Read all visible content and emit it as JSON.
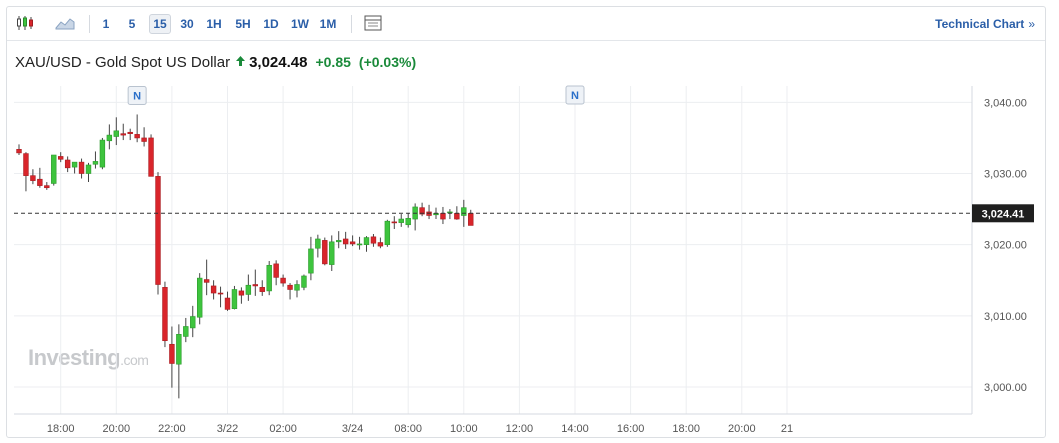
{
  "toolbar": {
    "chart_type_icons": [
      "candlestick-icon",
      "area-chart-icon"
    ],
    "periods": [
      "1",
      "5",
      "15",
      "30",
      "1H",
      "5H",
      "1D",
      "1W",
      "1M"
    ],
    "active_period": "15",
    "indicator_icon": "indicator-panel-icon",
    "technical_chart_label": "Technical Chart",
    "technical_chart_chevron": "»"
  },
  "header": {
    "instrument": "XAU/USD - Gold Spot US Dollar",
    "price": "3,024.48",
    "change": "+0.85",
    "change_pct": "(+0.03%)",
    "trend_icon": "up-arrow-icon",
    "up_color": "#1a8a3a"
  },
  "watermark": {
    "brand": "Investing",
    "suffix": ".com"
  },
  "chart_data": {
    "type": "candlestick",
    "title": "",
    "y_axis": {
      "position": "right",
      "ticks": [
        "3,000.00",
        "3,010.00",
        "3,020.00",
        "3,030.00",
        "3,040.00"
      ],
      "tick_values": [
        3000,
        3010,
        3020,
        3030,
        3040
      ],
      "range": [
        2996.2,
        3042.3
      ]
    },
    "x_axis": {
      "ticks": [
        "18:00",
        "20:00",
        "22:00",
        "3/22",
        "02:00",
        "3/24",
        "08:00",
        "10:00",
        "12:00",
        "14:00",
        "16:00",
        "18:00",
        "20:00",
        "21"
      ],
      "tick_index": [
        6,
        14,
        22,
        30,
        38,
        48,
        56,
        64,
        72,
        80,
        88,
        96,
        104,
        110.5
      ]
    },
    "current_price_label": "3,024.41",
    "current_price": 3024.41,
    "news_markers": [
      {
        "label": "N",
        "index": 17
      },
      {
        "label": "N",
        "index": 80
      }
    ],
    "colors": {
      "up": "#3ec43e",
      "down": "#d9252b",
      "grid": "#eceef1",
      "axis_text": "#555555"
    },
    "grid": true,
    "candles": [
      [
        3033.4,
        3034.1,
        3032.6,
        3032.9
      ],
      [
        3032.8,
        3033.0,
        3027.5,
        3029.7
      ],
      [
        3029.7,
        3030.6,
        3028.5,
        3029.0
      ],
      [
        3029.2,
        3030.8,
        3028.0,
        3028.3
      ],
      [
        3028.3,
        3028.8,
        3027.7,
        3028.0
      ],
      [
        3028.6,
        3032.6,
        3028.3,
        3032.6
      ],
      [
        3032.4,
        3033.0,
        3031.6,
        3032.0
      ],
      [
        3031.9,
        3032.4,
        3030.2,
        3030.8
      ],
      [
        3030.9,
        3031.6,
        3030.0,
        3031.6
      ],
      [
        3031.6,
        3032.1,
        3029.3,
        3030.0
      ],
      [
        3030.0,
        3031.5,
        3028.8,
        3031.2
      ],
      [
        3031.3,
        3033.1,
        3030.7,
        3031.7
      ],
      [
        3030.9,
        3035.0,
        3030.6,
        3034.7
      ],
      [
        3034.6,
        3036.9,
        3033.4,
        3035.4
      ],
      [
        3035.2,
        3037.9,
        3034.0,
        3036.0
      ],
      [
        3035.6,
        3037.0,
        3034.7,
        3035.4
      ],
      [
        3035.8,
        3036.3,
        3034.7,
        3035.6
      ],
      [
        3035.5,
        3038.3,
        3034.4,
        3035.0
      ],
      [
        3035.0,
        3036.5,
        3033.8,
        3034.5
      ],
      [
        3035.0,
        3035.5,
        3029.8,
        3029.6
      ],
      [
        3029.6,
        3030.2,
        3013.0,
        3014.4
      ],
      [
        3014.0,
        3014.8,
        3005.6,
        3006.5
      ],
      [
        3006.0,
        3008.5,
        2999.9,
        3003.3
      ],
      [
        3003.2,
        3008.8,
        2998.4,
        3007.4
      ],
      [
        3007.1,
        3009.7,
        3006.3,
        3008.5
      ],
      [
        3008.3,
        3011.4,
        3007.0,
        3009.9
      ],
      [
        3009.8,
        3016.0,
        3008.8,
        3015.3
      ],
      [
        3015.1,
        3017.9,
        3012.9,
        3014.7
      ],
      [
        3014.2,
        3015.0,
        3012.3,
        3013.2
      ],
      [
        3013.2,
        3014.1,
        3011.2,
        3013.1
      ],
      [
        3012.5,
        3013.4,
        3010.7,
        3010.9
      ],
      [
        3011.0,
        3014.2,
        3010.9,
        3013.7
      ],
      [
        3013.5,
        3014.0,
        3011.7,
        3012.9
      ],
      [
        3013.0,
        3015.8,
        3012.1,
        3014.3
      ],
      [
        3014.4,
        3016.5,
        3012.8,
        3014.2
      ],
      [
        3014.0,
        3015.0,
        3012.8,
        3013.4
      ],
      [
        3013.5,
        3017.7,
        3012.9,
        3017.1
      ],
      [
        3017.3,
        3017.8,
        3014.3,
        3015.4
      ],
      [
        3015.3,
        3015.8,
        3014.1,
        3014.6
      ],
      [
        3014.3,
        3014.6,
        3012.3,
        3013.7
      ],
      [
        3013.6,
        3015.0,
        3012.6,
        3014.4
      ],
      [
        3014.0,
        3015.8,
        3013.6,
        3015.6
      ],
      [
        3016.0,
        3021.1,
        3015.0,
        3019.4
      ],
      [
        3019.5,
        3021.4,
        3018.2,
        3020.8
      ],
      [
        3020.6,
        3021.0,
        3017.1,
        3017.3
      ],
      [
        3017.2,
        3021.3,
        3016.3,
        3020.4
      ],
      [
        3020.4,
        3021.9,
        3019.5,
        3020.6
      ],
      [
        3020.8,
        3021.8,
        3019.4,
        3020.1
      ],
      [
        3020.4,
        3021.3,
        3019.8,
        3020.1
      ],
      [
        3020.1,
        3021.1,
        3019.3,
        3020.1
      ],
      [
        3020.0,
        3021.2,
        3019.0,
        3021.0
      ],
      [
        3021.1,
        3021.5,
        3019.7,
        3020.2
      ],
      [
        3020.3,
        3021.0,
        3019.5,
        3019.8
      ],
      [
        3020.0,
        3023.5,
        3019.7,
        3023.3
      ],
      [
        3023.2,
        3024.0,
        3022.2,
        3023.1
      ],
      [
        3023.1,
        3024.3,
        3022.5,
        3023.6
      ],
      [
        3022.8,
        3024.4,
        3022.4,
        3023.7
      ],
      [
        3023.6,
        3025.8,
        3022.0,
        3025.3
      ],
      [
        3025.2,
        3025.9,
        3024.0,
        3024.3
      ],
      [
        3024.6,
        3025.6,
        3023.6,
        3024.1
      ],
      [
        3024.2,
        3025.2,
        3023.6,
        3024.4
      ],
      [
        3024.4,
        3025.3,
        3022.9,
        3023.6
      ],
      [
        3024.6,
        3025.0,
        3023.6,
        3024.6
      ],
      [
        3024.4,
        3025.4,
        3023.5,
        3023.6
      ],
      [
        3024.1,
        3026.3,
        3022.5,
        3025.2
      ],
      [
        3024.4,
        3024.9,
        3022.8,
        3022.7
      ]
    ]
  }
}
